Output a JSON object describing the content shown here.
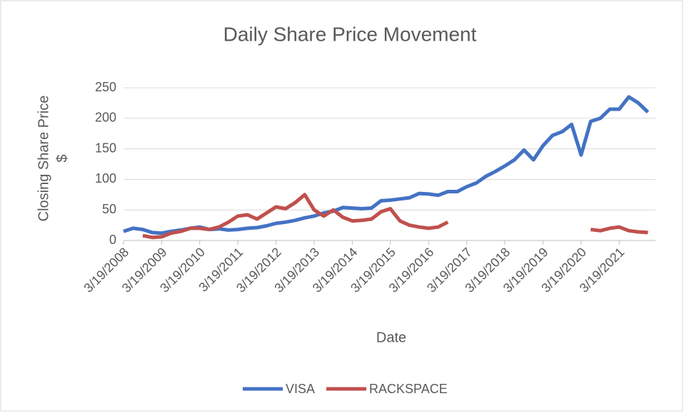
{
  "chart_data": {
    "type": "line",
    "title": "Daily Share Price Movement",
    "x_label": "Date",
    "y_label": [
      "Closing Share Price",
      "$"
    ],
    "x": [
      "3/19/2008",
      "6/19/2008",
      "9/19/2008",
      "12/19/2008",
      "3/19/2009",
      "6/19/2009",
      "9/19/2009",
      "12/19/2009",
      "3/19/2010",
      "6/19/2010",
      "9/19/2010",
      "12/19/2010",
      "3/19/2011",
      "6/19/2011",
      "9/19/2011",
      "12/19/2011",
      "3/19/2012",
      "6/19/2012",
      "9/19/2012",
      "12/19/2012",
      "3/19/2013",
      "6/19/2013",
      "9/19/2013",
      "12/19/2013",
      "3/19/2014",
      "6/19/2014",
      "9/19/2014",
      "12/19/2014",
      "3/19/2015",
      "6/19/2015",
      "9/19/2015",
      "12/19/2015",
      "3/19/2016",
      "6/19/2016",
      "9/19/2016",
      "12/19/2016",
      "3/19/2017",
      "6/19/2017",
      "9/19/2017",
      "12/19/2017",
      "3/19/2018",
      "6/19/2018",
      "9/19/2018",
      "12/19/2018",
      "3/19/2019",
      "6/19/2019",
      "9/19/2019",
      "12/19/2019",
      "3/19/2020",
      "6/19/2020",
      "9/19/2020",
      "12/19/2020",
      "3/19/2021",
      "6/19/2021",
      "9/19/2021",
      "12/19/2021"
    ],
    "series": [
      {
        "name": "VISA",
        "color": "#4472c4",
        "values": [
          15,
          20,
          18,
          13,
          12,
          15,
          17,
          20,
          22,
          18,
          19,
          17,
          18,
          20,
          21,
          24,
          28,
          30,
          33,
          37,
          40,
          45,
          48,
          54,
          53,
          52,
          53,
          65,
          66,
          68,
          70,
          77,
          76,
          74,
          80,
          80,
          88,
          94,
          105,
          113,
          122,
          132,
          148,
          132,
          155,
          172,
          178,
          190,
          140,
          195,
          200,
          215,
          215,
          235,
          225,
          210
        ]
      },
      {
        "name": "RACKSPACE",
        "color": "#c0504d",
        "values": [
          null,
          null,
          8,
          5,
          6,
          12,
          15,
          20,
          20,
          18,
          22,
          30,
          40,
          42,
          35,
          45,
          55,
          52,
          62,
          75,
          50,
          40,
          50,
          38,
          32,
          33,
          35,
          47,
          52,
          32,
          25,
          22,
          20,
          22,
          30,
          null,
          null,
          null,
          null,
          null,
          null,
          null,
          null,
          null,
          null,
          null,
          null,
          null,
          null,
          18,
          16,
          20,
          22,
          16,
          14,
          13
        ]
      }
    ],
    "xlim": [
      "3/19/2008",
      "3/1/2022"
    ],
    "xticks": [
      "3/19/2008",
      "3/19/2009",
      "3/19/2010",
      "3/19/2011",
      "3/19/2012",
      "3/19/2013",
      "3/19/2014",
      "3/19/2015",
      "3/19/2016",
      "3/19/2017",
      "3/19/2018",
      "3/19/2019",
      "3/19/2020",
      "3/19/2021"
    ],
    "ylim": [
      0,
      250
    ],
    "yticks": [
      0,
      50,
      100,
      150,
      200,
      250
    ],
    "grid": true,
    "legend": "bottom"
  }
}
